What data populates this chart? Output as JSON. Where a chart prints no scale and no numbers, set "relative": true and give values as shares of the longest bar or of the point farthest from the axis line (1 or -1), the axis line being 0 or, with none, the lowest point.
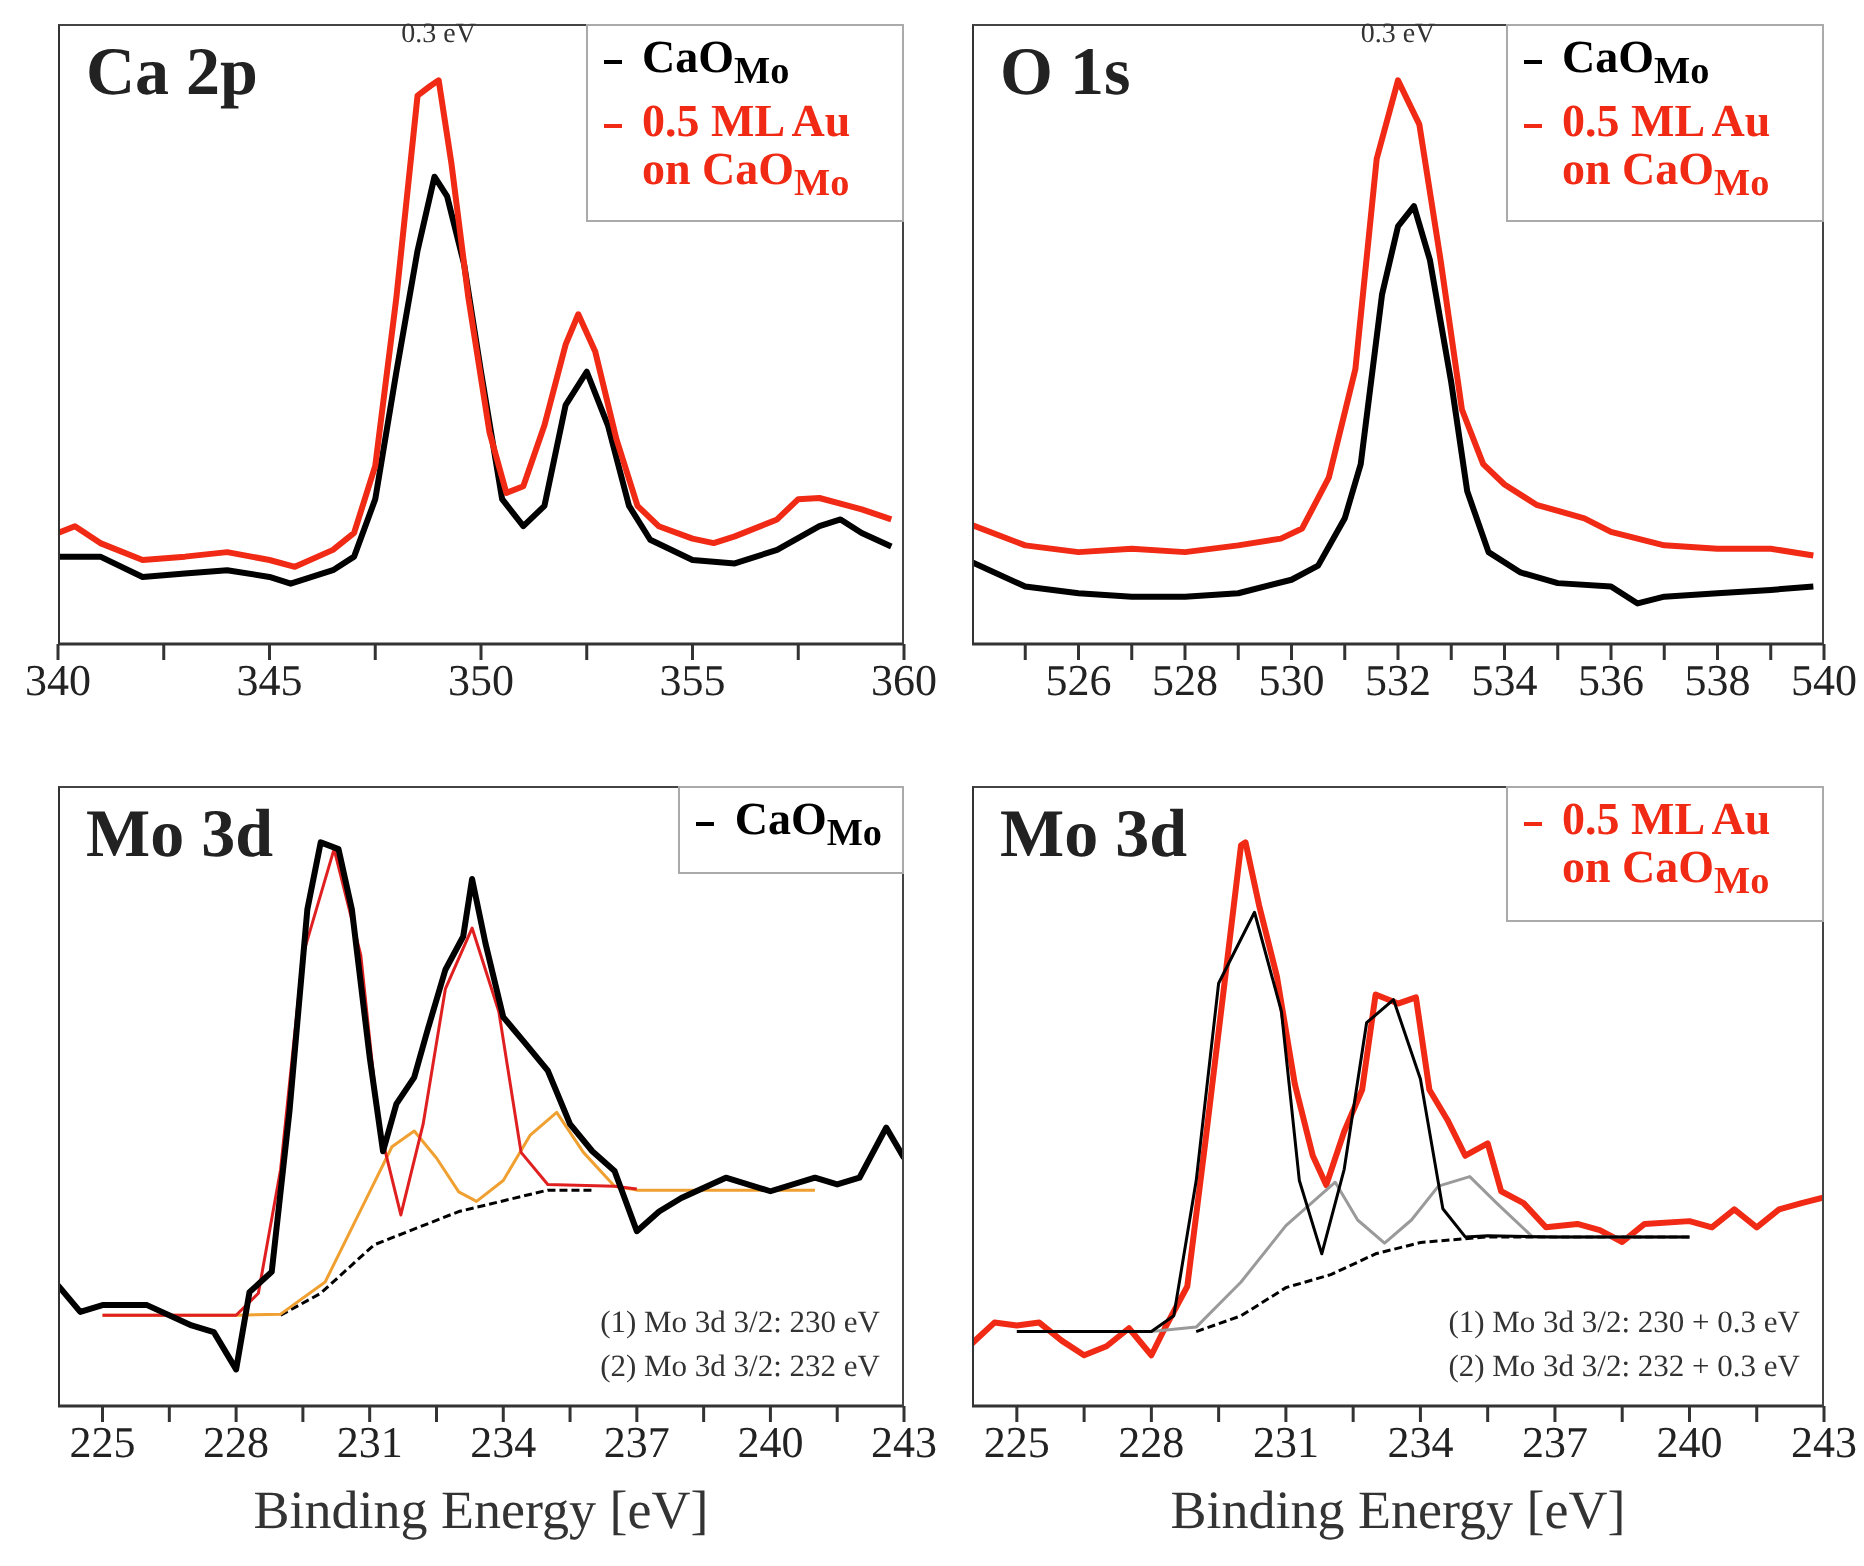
{
  "chart_data": [
    {
      "type": "line",
      "title": "Ca 2p",
      "relative": true,
      "legend": "top right",
      "marker": "none",
      "xlim": [
        340,
        360
      ],
      "xticks": [
        340,
        {
          "value": 342.5,
          "label": null
        },
        345,
        {
          "value": 347.5,
          "label": null
        },
        350,
        {
          "value": 352.5,
          "label": null
        },
        355,
        {
          "value": 357.5,
          "label": null
        },
        360
      ],
      "annotations": [
        {
          "text": "0.3 eV",
          "x": 349,
          "y": 1.0
        }
      ],
      "series": [
        {
          "name": "CaO$_{Mo}$",
          "color": "#000000",
          "line_style": "solid",
          "x": [
            340,
            341,
            342,
            343,
            344,
            345,
            345.5,
            346.5,
            347,
            347.5,
            348,
            348.5,
            348.9,
            349.2,
            349.6,
            350,
            350.5,
            351,
            351.5,
            352,
            352.5,
            353,
            353.5,
            354,
            355,
            356,
            357,
            358,
            358.5,
            359,
            359.7
          ],
          "values": [
            0.155,
            0.155,
            0.119,
            0.125,
            0.131,
            0.119,
            0.107,
            0.131,
            0.155,
            0.257,
            0.483,
            0.698,
            0.829,
            0.794,
            0.674,
            0.483,
            0.257,
            0.209,
            0.245,
            0.424,
            0.483,
            0.388,
            0.245,
            0.185,
            0.149,
            0.143,
            0.167,
            0.209,
            0.221,
            0.197,
            0.173
          ]
        },
        {
          "name": "0.5 ML Au on CaO$_{Mo}$",
          "color": "#f02a14",
          "line_style": "solid",
          "x": [
            340,
            340.4,
            341,
            342,
            343,
            344,
            345,
            345.6,
            346.5,
            347,
            347.5,
            348,
            348.5,
            348.8,
            349,
            349.3,
            349.7,
            350.2,
            350.6,
            351,
            351.5,
            352,
            352.3,
            352.7,
            353.2,
            353.7,
            354.2,
            355,
            355.5,
            356,
            357,
            357.5,
            358,
            359,
            359.7
          ],
          "values": [
            0.197,
            0.209,
            0.179,
            0.149,
            0.155,
            0.163,
            0.149,
            0.137,
            0.167,
            0.197,
            0.316,
            0.615,
            0.973,
            0.99,
            1.0,
            0.853,
            0.615,
            0.376,
            0.268,
            0.28,
            0.388,
            0.531,
            0.585,
            0.519,
            0.364,
            0.245,
            0.209,
            0.187,
            0.179,
            0.191,
            0.221,
            0.257,
            0.259,
            0.239,
            0.221
          ]
        }
      ]
    },
    {
      "type": "line",
      "title": "O 1s",
      "relative": true,
      "legend": "top right",
      "marker": "none",
      "xlim": [
        524,
        540
      ],
      "xticks": [
        {
          "value": 525,
          "label": null
        },
        526,
        {
          "value": 527,
          "label": null
        },
        528,
        {
          "value": 529,
          "label": null
        },
        530,
        {
          "value": 531,
          "label": null
        },
        532,
        {
          "value": 533,
          "label": null
        },
        534,
        {
          "value": 535,
          "label": null
        },
        536,
        {
          "value": 537,
          "label": null
        },
        538,
        {
          "value": 539,
          "label": null
        },
        540
      ],
      "annotations": [
        {
          "text": "0.3 eV",
          "x": 532,
          "y": 1.0
        }
      ],
      "series": [
        {
          "name": "CaO$_{Mo}$",
          "color": "#000000",
          "line_style": "solid",
          "x": [
            524,
            525,
            526,
            527,
            528,
            529,
            530,
            530.5,
            531,
            531.3,
            531.7,
            532,
            532.3,
            532.6,
            533,
            533.3,
            533.7,
            534.3,
            535,
            536,
            536.5,
            537,
            538,
            539,
            539.8
          ],
          "values": [
            0.145,
            0.102,
            0.09,
            0.084,
            0.084,
            0.09,
            0.114,
            0.139,
            0.223,
            0.319,
            0.62,
            0.741,
            0.777,
            0.681,
            0.464,
            0.271,
            0.163,
            0.127,
            0.108,
            0.102,
            0.072,
            0.084,
            0.09,
            0.096,
            0.102
          ]
        },
        {
          "name": "0.5 ML Au on CaO$_{Mo}$",
          "color": "#f02a14",
          "line_style": "solid",
          "x": [
            524,
            525,
            526,
            527,
            528,
            529,
            529.8,
            530.2,
            530.7,
            531.2,
            531.6,
            532,
            532.4,
            532.8,
            533.2,
            533.6,
            534,
            534.6,
            535.5,
            536,
            537,
            538,
            539,
            539.8
          ],
          "values": [
            0.211,
            0.175,
            0.163,
            0.169,
            0.163,
            0.175,
            0.187,
            0.205,
            0.295,
            0.488,
            0.861,
            1.0,
            0.922,
            0.681,
            0.416,
            0.319,
            0.283,
            0.247,
            0.223,
            0.199,
            0.175,
            0.169,
            0.169,
            0.157
          ]
        }
      ]
    },
    {
      "type": "line",
      "title": "Mo 3d",
      "xlabel": "Binding Energy [eV]",
      "relative": true,
      "legend": "top right",
      "marker": "none",
      "xlim": [
        224,
        243
      ],
      "xticks": [
        225,
        {
          "value": 226.5,
          "label": null
        },
        228,
        {
          "value": 229.5,
          "label": null
        },
        231,
        {
          "value": 232.5,
          "label": null
        },
        234,
        {
          "value": 235.5,
          "label": null
        },
        237,
        {
          "value": 238.5,
          "label": null
        },
        240,
        {
          "value": 241.5,
          "label": null
        },
        243
      ],
      "annotations": [
        "(1) Mo 3d 3/2: 230 eV",
        "(2) Mo 3d 3/2: 232 eV"
      ],
      "series": [
        {
          "color": "#000000",
          "line_style": "dashed",
          "x": [
            229,
            229.9,
            231.1,
            233,
            235,
            236
          ],
          "values": [
            0.161,
            0.2,
            0.286,
            0.345,
            0.383,
            0.383
          ]
        },
        {
          "color": "#f0a030",
          "line_style": "solid",
          "x": [
            225,
            228,
            229,
            230,
            231,
            231.5,
            232,
            232.5,
            233,
            233.4,
            234,
            234.6,
            235.2,
            235.8,
            236.5,
            237,
            238.5,
            240,
            241
          ],
          "values": [
            0.161,
            0.161,
            0.163,
            0.22,
            0.38,
            0.46,
            0.488,
            0.44,
            0.38,
            0.363,
            0.4,
            0.48,
            0.521,
            0.45,
            0.39,
            0.383,
            0.383,
            0.383,
            0.383
          ]
        },
        {
          "color": "#e02020",
          "line_style": "solid",
          "x": [
            225,
            227,
            228,
            228.5,
            229,
            229.5,
            230.2,
            230.8,
            231.2,
            231.7,
            232.2,
            232.7,
            233.3,
            233.9,
            234.4,
            235,
            236.5,
            237
          ],
          "values": [
            0.161,
            0.161,
            0.161,
            0.2,
            0.42,
            0.8,
            0.988,
            0.8,
            0.5,
            0.339,
            0.5,
            0.74,
            0.848,
            0.7,
            0.45,
            0.393,
            0.39,
            0.385
          ]
        },
        {
          "name": "CaO$_{Mo}$",
          "color": "#000000",
          "line_style": "solid",
          "x": [
            224,
            224.5,
            225,
            226,
            227,
            227.5,
            228,
            228.3,
            228.8,
            229.2,
            229.6,
            229.9,
            230.3,
            230.6,
            231,
            231.3,
            231.6,
            232,
            232.3,
            232.7,
            233.1,
            233.3,
            233.6,
            234,
            234.5,
            235,
            235.5,
            236,
            236.5,
            237,
            237.5,
            238,
            239,
            240,
            241,
            241.5,
            242,
            242.6,
            243
          ],
          "values": [
            0.214,
            0.167,
            0.179,
            0.179,
            0.143,
            0.131,
            0.065,
            0.202,
            0.238,
            0.524,
            0.881,
            1.0,
            0.988,
            0.881,
            0.619,
            0.452,
            0.536,
            0.583,
            0.667,
            0.774,
            0.833,
            0.935,
            0.821,
            0.69,
            0.643,
            0.595,
            0.5,
            0.452,
            0.417,
            0.31,
            0.345,
            0.369,
            0.405,
            0.381,
            0.405,
            0.393,
            0.405,
            0.494,
            0.44
          ]
        }
      ]
    },
    {
      "type": "line",
      "title": "Mo 3d",
      "xlabel": "Binding Energy [eV]",
      "relative": true,
      "legend": "top right",
      "marker": "none",
      "xlim": [
        224,
        243
      ],
      "xticks": [
        225,
        {
          "value": 226.5,
          "label": null
        },
        228,
        {
          "value": 229.5,
          "label": null
        },
        231,
        {
          "value": 232.5,
          "label": null
        },
        234,
        {
          "value": 235.5,
          "label": null
        },
        237,
        {
          "value": 238.5,
          "label": null
        },
        240,
        {
          "value": 241.5,
          "label": null
        },
        243
      ],
      "annotations": [
        "(1) Mo 3d 3/2: 230 + 0.3 eV",
        "(2) Mo 3d 3/2: 232 + 0.3 eV"
      ],
      "series": [
        {
          "name": "0.5 ML Au on CaO$_{Mo}$",
          "color": "#f02a14",
          "line_style": "solid",
          "x": [
            224,
            224.5,
            225,
            225.5,
            226,
            226.5,
            227,
            227.5,
            228,
            228.3,
            228.8,
            229.2,
            229.6,
            230,
            230.1,
            230.4,
            230.8,
            231.2,
            231.6,
            231.9,
            232.3,
            232.7,
            233,
            233.5,
            233.9,
            234.2,
            234.6,
            235,
            235.5,
            235.8,
            236.3,
            236.8,
            237.5,
            238,
            238.5,
            239,
            240,
            240.5,
            241,
            241.5,
            242,
            242.5,
            243
          ],
          "values": [
            0.111,
            0.148,
            0.143,
            0.148,
            0.116,
            0.09,
            0.106,
            0.138,
            0.09,
            0.138,
            0.212,
            0.466,
            0.73,
            0.995,
            1.0,
            0.889,
            0.762,
            0.571,
            0.444,
            0.392,
            0.487,
            0.561,
            0.73,
            0.714,
            0.725,
            0.561,
            0.508,
            0.444,
            0.466,
            0.381,
            0.36,
            0.317,
            0.323,
            0.312,
            0.291,
            0.323,
            0.328,
            0.317,
            0.349,
            0.317,
            0.349,
            0.36,
            0.37
          ]
        },
        {
          "color": "#000000",
          "line_style": "dashed",
          "x": [
            229,
            230,
            231,
            232,
            233,
            234,
            235.5,
            240
          ],
          "values": [
            0.132,
            0.16,
            0.21,
            0.233,
            0.27,
            0.29,
            0.3,
            0.3
          ]
        },
        {
          "color": "#9a9a9a",
          "line_style": "solid",
          "x": [
            225,
            228,
            229,
            230,
            231,
            232.1,
            232.6,
            233.2,
            233.8,
            234.4,
            235.1,
            235.7,
            236.5,
            237,
            240
          ],
          "values": [
            0.132,
            0.132,
            0.14,
            0.22,
            0.32,
            0.397,
            0.33,
            0.289,
            0.33,
            0.39,
            0.407,
            0.36,
            0.3,
            0.3,
            0.3
          ]
        },
        {
          "color": "#000000",
          "line_style": "solid",
          "x": [
            225,
            228,
            228.5,
            229,
            229.5,
            230.3,
            230.9,
            231.3,
            231.8,
            232.3,
            232.8,
            233.4,
            234,
            234.5,
            235,
            235.5,
            237,
            240
          ],
          "values": [
            0.132,
            0.132,
            0.16,
            0.4,
            0.75,
            0.876,
            0.7,
            0.4,
            0.27,
            0.42,
            0.68,
            0.721,
            0.58,
            0.35,
            0.3,
            0.302,
            0.3,
            0.3
          ]
        }
      ]
    }
  ]
}
